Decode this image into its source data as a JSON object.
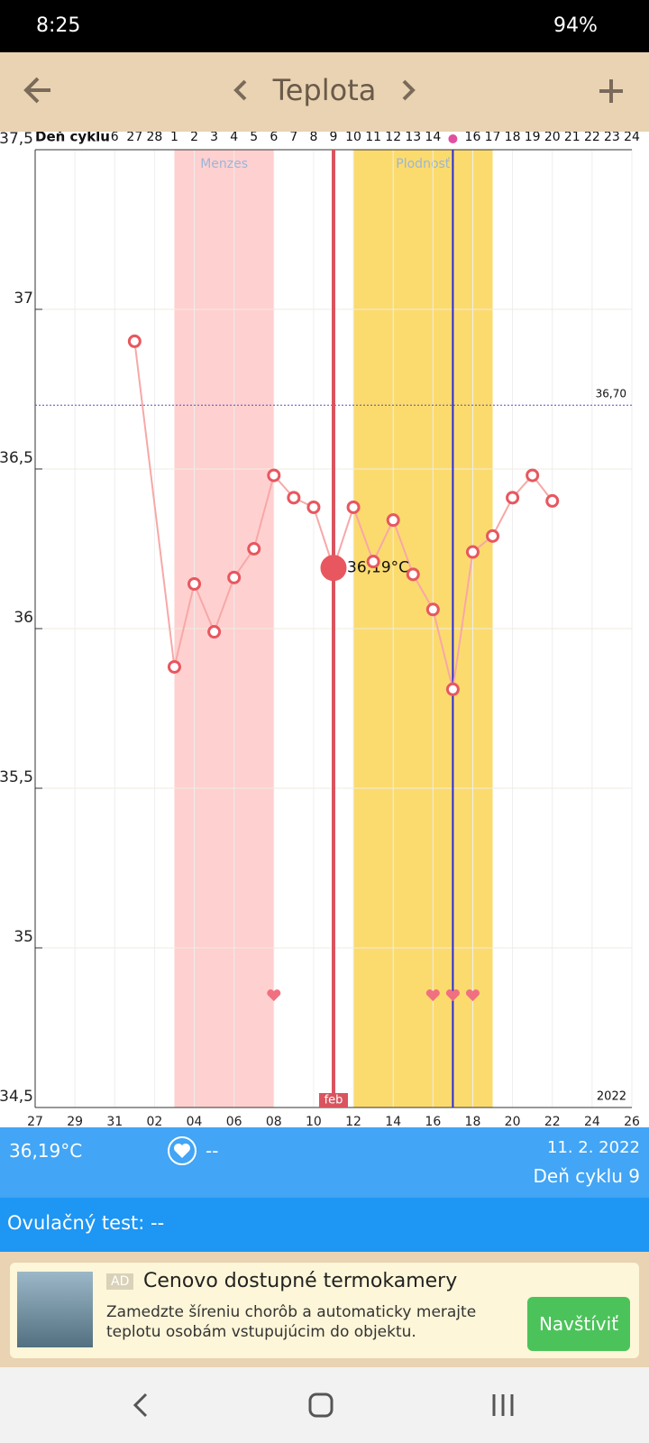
{
  "status_bar": {
    "time": "8:25",
    "battery": "94%"
  },
  "toolbar": {
    "title": "Teplota"
  },
  "chart_data": {
    "type": "line",
    "cycle_day_header": "Deň cyklu",
    "cycle_days": [
      null,
      null,
      null,
      null,
      "6",
      "27",
      "28",
      "1",
      "2",
      "3",
      "4",
      "5",
      "6",
      "7",
      "8",
      "9",
      "10",
      "11",
      "12",
      "13",
      "14",
      null,
      "16",
      "17",
      "18",
      "19",
      "20",
      "21",
      "22",
      "23",
      "24"
    ],
    "x": [
      5,
      7,
      8,
      9,
      10,
      11,
      12,
      13,
      14,
      15,
      16,
      17,
      18,
      19,
      20,
      21,
      22,
      23,
      24,
      25,
      26
    ],
    "values": [
      36.9,
      35.88,
      36.14,
      35.99,
      36.16,
      36.25,
      36.48,
      36.41,
      36.38,
      36.19,
      36.38,
      36.21,
      36.34,
      36.17,
      36.06,
      35.81,
      36.24,
      36.29,
      36.41,
      36.48,
      36.4
    ],
    "value_labels": [
      null,
      null,
      null,
      null,
      null,
      null,
      null,
      null,
      null,
      "36,19°C",
      null,
      null,
      null,
      null,
      null,
      null,
      null,
      null,
      null,
      null,
      null
    ],
    "selected_index": 9,
    "line_color": "#f7a8a8",
    "marker_color": "#e8575f",
    "xlim": [
      0,
      30
    ],
    "xticks": [
      {
        "value": 0,
        "label": "27"
      },
      {
        "value": 2,
        "label": "29"
      },
      {
        "value": 4,
        "label": "31"
      },
      {
        "value": 6,
        "label": "02"
      },
      {
        "value": 8,
        "label": "04"
      },
      {
        "value": 10,
        "label": "06"
      },
      {
        "value": 12,
        "label": "08"
      },
      {
        "value": 14,
        "label": "10"
      },
      {
        "value": 16,
        "label": "12"
      },
      {
        "value": 18,
        "label": "14"
      },
      {
        "value": 20,
        "label": "16"
      },
      {
        "value": 22,
        "label": "18"
      },
      {
        "value": 24,
        "label": "20"
      },
      {
        "value": 26,
        "label": "22"
      },
      {
        "value": 28,
        "label": "24"
      },
      {
        "value": 30,
        "label": "26"
      }
    ],
    "ylim": [
      34.5,
      37.5
    ],
    "yticks": [
      {
        "value": 34.5,
        "label": "34,5"
      },
      35,
      {
        "value": 35.5,
        "label": "35,5"
      },
      36,
      {
        "value": 36.5,
        "label": "36,5"
      },
      37,
      {
        "value": 37.5,
        "label": "37,5"
      }
    ],
    "grid": true,
    "bands": [
      {
        "label": "Menzes",
        "start": 7,
        "end": 12,
        "color": "#ffd0d0"
      },
      {
        "label": "Plodnosť",
        "start": 16,
        "end": 23,
        "color": "#fbdb6e"
      }
    ],
    "reference_line": {
      "value": 36.7,
      "label": "36,70"
    },
    "selected_line": {
      "x": 15,
      "color": "#d9545f",
      "month_label": "feb"
    },
    "ovulation_line": {
      "x": 21,
      "color": "#2a2ad6"
    },
    "hearts": [
      {
        "x": 12,
        "y": 34.85
      },
      {
        "x": 20,
        "y": 34.85
      },
      {
        "x": 21,
        "y": 34.85
      },
      {
        "x": 22,
        "y": 34.85
      }
    ],
    "year_label": "2022"
  },
  "info": {
    "temperature": "36,19°C",
    "heart_value": "--",
    "date": "11. 2. 2022",
    "cycle_day": "Deň cyklu 9",
    "ovulation_test": "Ovulačný test: --"
  },
  "ad": {
    "badge": "AD",
    "title": "Cenovo dostupné termokamery",
    "text": "Zamedzte šíreniu chorôb a automaticky merajte teplotu osobám vstupujúcim do objektu.",
    "button": "Navštíviť"
  }
}
